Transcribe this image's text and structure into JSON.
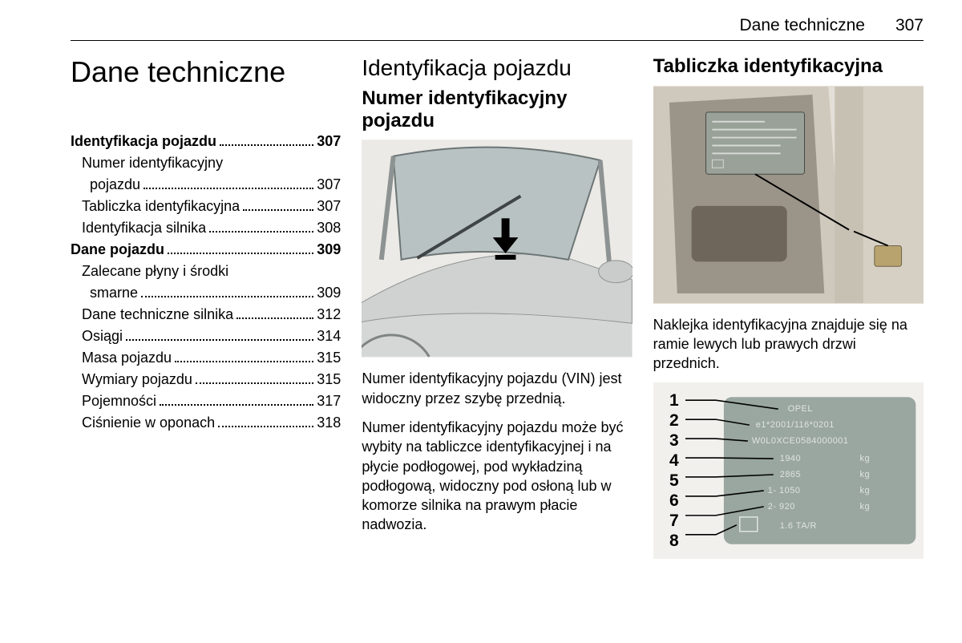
{
  "header": {
    "title": "Dane techniczne",
    "page": "307"
  },
  "col1": {
    "title": "Dane techniczne",
    "toc": [
      {
        "label": "Identyfikacja pojazdu",
        "page": "307",
        "bold": true
      },
      {
        "label": "Numer identyfikacyjny pojazdu",
        "page": "307",
        "sub": true,
        "wrap": true
      },
      {
        "label": "Tabliczka identyfikacyjna",
        "page": "307",
        "sub": true
      },
      {
        "label": "Identyfikacja silnika",
        "page": "308",
        "sub": true
      },
      {
        "label": "Dane pojazdu",
        "page": "309",
        "bold": true
      },
      {
        "label": "Zalecane płyny i środki smarne",
        "page": "309",
        "sub": true,
        "wrap": true
      },
      {
        "label": "Dane techniczne silnika",
        "page": "312",
        "sub": true
      },
      {
        "label": "Osiągi",
        "page": "314",
        "sub": true
      },
      {
        "label": "Masa pojazdu",
        "page": "315",
        "sub": true
      },
      {
        "label": "Wymiary pojazdu",
        "page": "315",
        "sub": true
      },
      {
        "label": "Pojemności",
        "page": "317",
        "sub": true
      },
      {
        "label": "Ciśnienie w oponach",
        "page": "318",
        "sub": true
      }
    ]
  },
  "col2": {
    "h2": "Identyfikacja pojazdu",
    "h3": "Numer identyfikacyjny pojazdu",
    "para1": "Numer identyfikacyjny pojazdu (VIN) jest widoczny przez szybę przednią.",
    "para2": "Numer identyfikacyjny pojazdu może być wybity na tabliczce identyfikacyjnej i na płycie podłogowej, pod wykładziną podłogową, widoczny pod osłoną lub w komorze silnika na prawym płacie nadwozia."
  },
  "col3": {
    "h3": "Tabliczka identyfikacyjna",
    "para1": "Naklejka identyfikacyjna znajduje się na ramie lewych lub prawych drzwi przednich.",
    "plate": {
      "numbers": [
        "1",
        "2",
        "3",
        "4",
        "5",
        "6",
        "7",
        "8"
      ],
      "brand": "OPEL",
      "rows": [
        "e1*2001/116*0201",
        "W0L0XCE0584000001",
        "1940    kg",
        "2865    kg",
        "1- 1050    kg",
        "2-  920    kg",
        "1.6 TA/R"
      ],
      "colors": {
        "plate_bg": "#9aa6a0",
        "plate_text": "#dfe5e1",
        "leader": "#000000"
      }
    }
  },
  "figures": {
    "fig1_colors": {
      "body": "#d4d7d6",
      "glass": "#b9c2c3",
      "line": "#585c5c",
      "arrow": "#000000"
    },
    "fig2_colors": {
      "car": "#cfc9bd",
      "interior": "#4b463e",
      "plate": "#9aa199",
      "leader": "#000000",
      "sticker": "#b8a36f"
    }
  }
}
